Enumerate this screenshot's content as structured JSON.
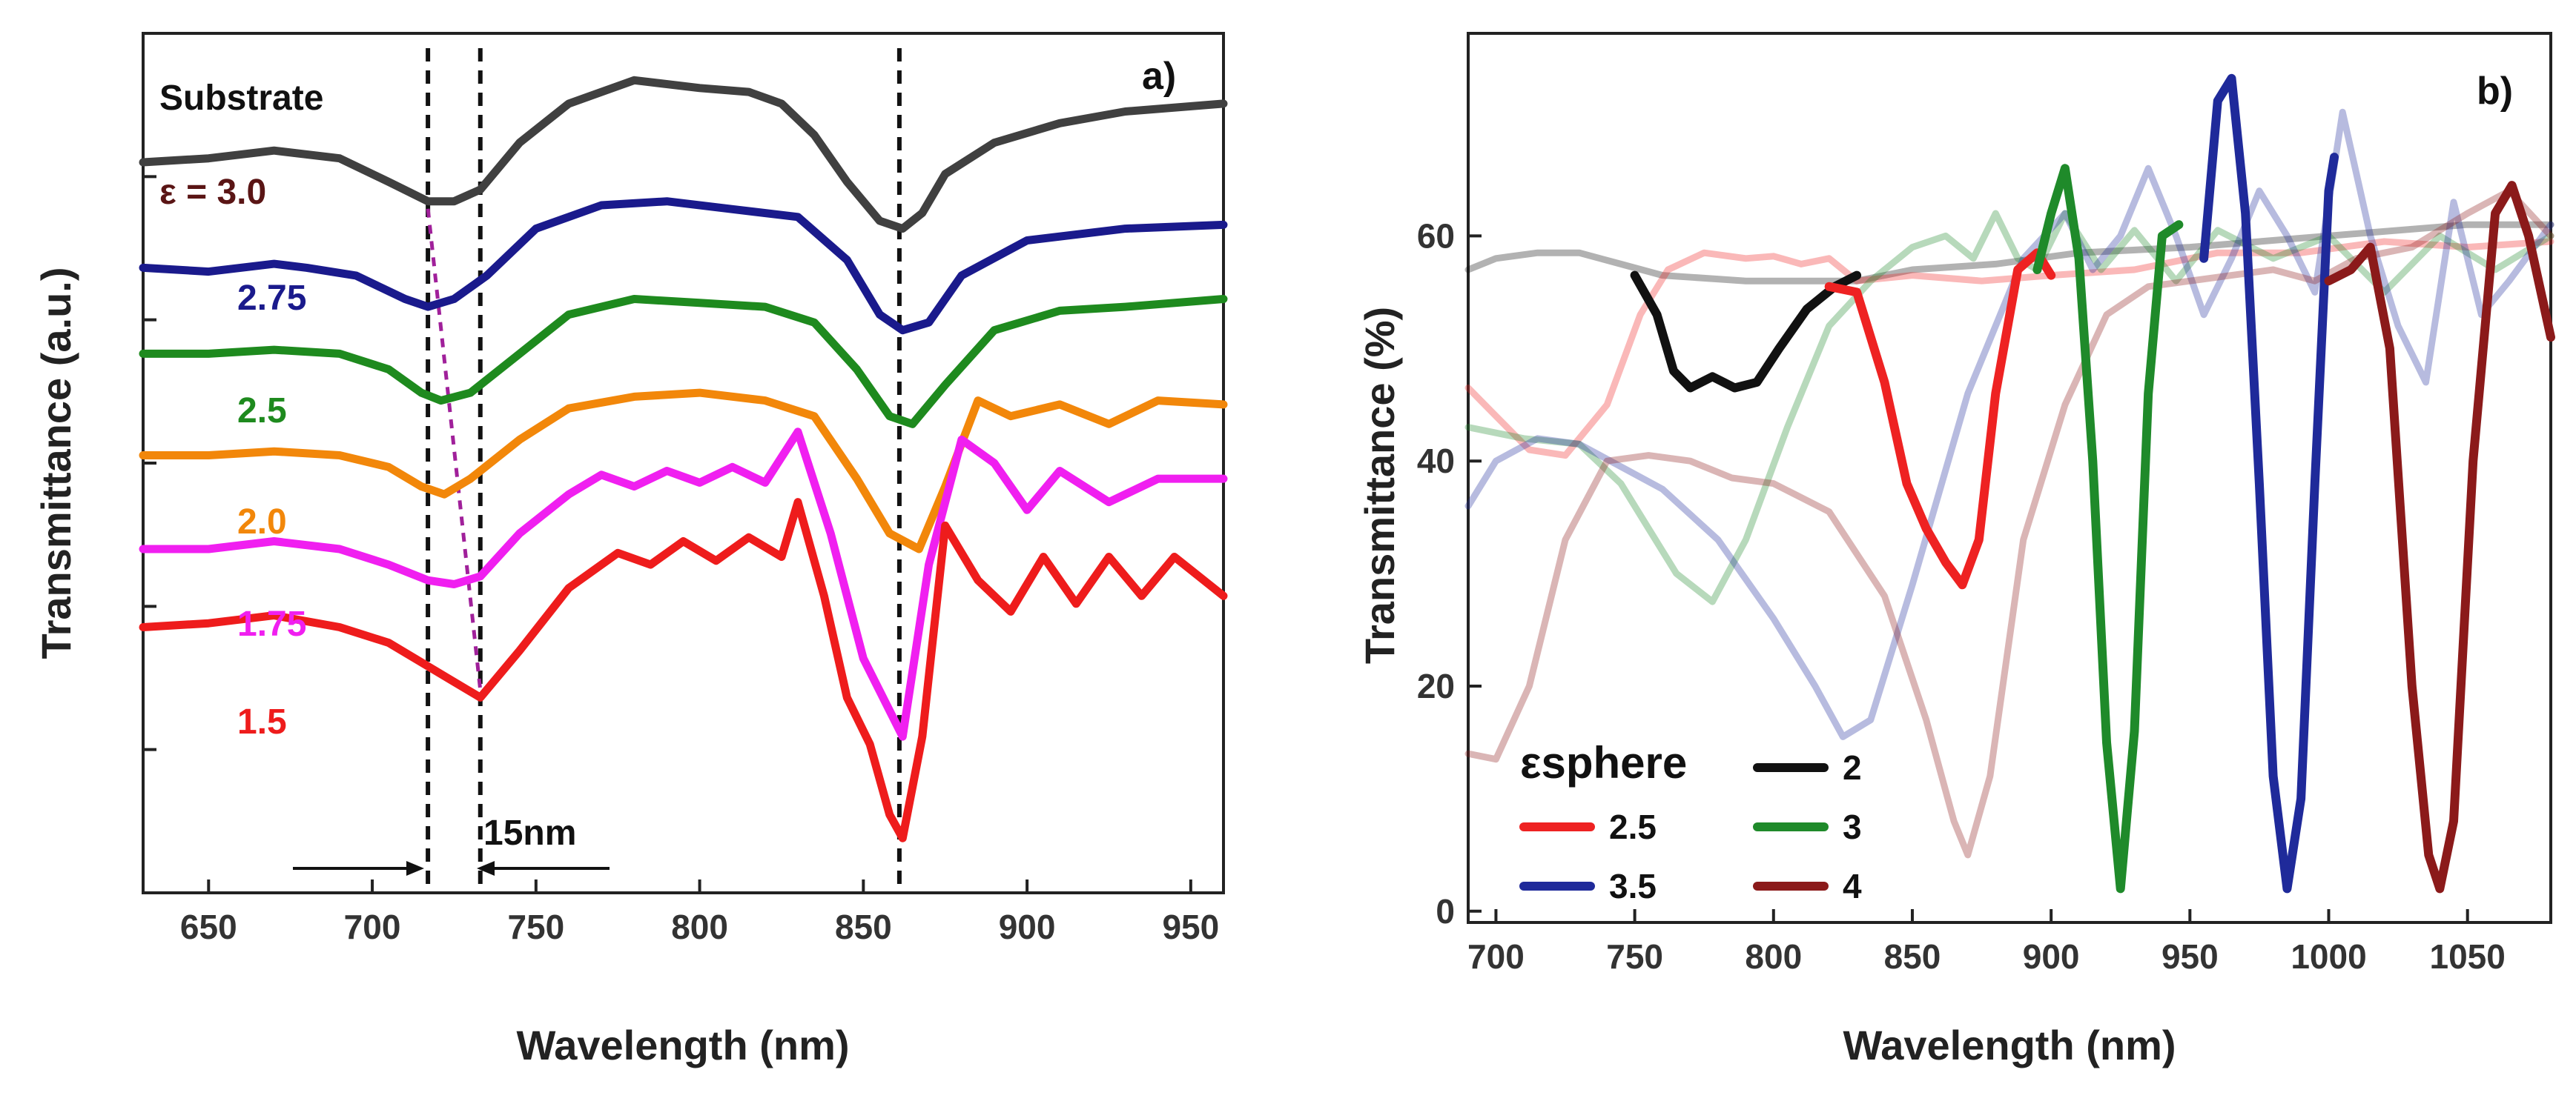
{
  "chart_data": [
    {
      "panel": "a)",
      "type": "line",
      "xlabel": "Wavelength (nm)",
      "ylabel": "Transmittance (a.u.)",
      "xlim": [
        630,
        960
      ],
      "ylim": [
        0,
        11
      ],
      "xticks": [
        650,
        700,
        750,
        800,
        850,
        900,
        950
      ],
      "yticks_labeled": false,
      "note": "Curves are vertically offset; y-values are arbitrary units.",
      "guide_lines_x": [
        717,
        733,
        861
      ],
      "shift_annotation": "15nm",
      "series": [
        {
          "name": "Substrate",
          "label": "Substrate",
          "color": "#404040",
          "x": [
            630,
            650,
            670,
            690,
            705,
            717,
            725,
            733,
            745,
            760,
            780,
            800,
            815,
            825,
            835,
            845,
            855,
            862,
            868,
            875,
            890,
            910,
            930,
            960
          ],
          "y": [
            9.35,
            9.4,
            9.5,
            9.4,
            9.1,
            8.85,
            8.85,
            9.0,
            9.6,
            10.1,
            10.4,
            10.3,
            10.25,
            10.1,
            9.7,
            9.1,
            8.6,
            8.5,
            8.7,
            9.2,
            9.6,
            9.85,
            10.0,
            10.1
          ]
        },
        {
          "name": "3.0",
          "label": "ε = 3.0",
          "color": "#5a1515"
        },
        {
          "name": "2.75",
          "label": "2.75",
          "color": "#1a1a8c",
          "x": [
            630,
            650,
            670,
            680,
            695,
            710,
            717,
            725,
            735,
            750,
            770,
            790,
            810,
            830,
            845,
            855,
            862,
            870,
            880,
            900,
            930,
            960
          ],
          "y": [
            8.0,
            7.95,
            8.05,
            8.0,
            7.9,
            7.6,
            7.5,
            7.6,
            7.9,
            8.5,
            8.8,
            8.85,
            8.75,
            8.65,
            8.1,
            7.4,
            7.2,
            7.3,
            7.9,
            8.35,
            8.5,
            8.55
          ]
        },
        {
          "name": "2.5",
          "label": "2.5",
          "color": "#1e8a1e",
          "x": [
            630,
            650,
            670,
            690,
            705,
            715,
            721,
            730,
            745,
            760,
            780,
            800,
            820,
            835,
            848,
            858,
            865,
            875,
            890,
            910,
            930,
            960
          ],
          "y": [
            6.9,
            6.9,
            6.95,
            6.9,
            6.7,
            6.4,
            6.3,
            6.4,
            6.9,
            7.4,
            7.6,
            7.55,
            7.5,
            7.3,
            6.7,
            6.1,
            6.0,
            6.5,
            7.2,
            7.45,
            7.5,
            7.6
          ]
        },
        {
          "name": "2.0",
          "label": "2.0",
          "color": "#f2870a",
          "x": [
            630,
            650,
            670,
            690,
            705,
            715,
            722,
            730,
            745,
            760,
            780,
            800,
            820,
            835,
            848,
            858,
            867,
            875,
            885,
            895,
            910,
            925,
            940,
            960
          ],
          "y": [
            5.6,
            5.6,
            5.65,
            5.6,
            5.45,
            5.2,
            5.1,
            5.3,
            5.8,
            6.2,
            6.35,
            6.4,
            6.3,
            6.1,
            5.3,
            4.6,
            4.4,
            5.2,
            6.3,
            6.1,
            6.25,
            6.0,
            6.3,
            6.25
          ]
        },
        {
          "name": "1.75",
          "label": "1.75",
          "color": "#f01ff0",
          "x": [
            630,
            650,
            670,
            690,
            705,
            717,
            725,
            733,
            745,
            760,
            770,
            780,
            790,
            800,
            810,
            820,
            830,
            840,
            850,
            862,
            870,
            880,
            890,
            900,
            910,
            925,
            940,
            960
          ],
          "y": [
            4.4,
            4.4,
            4.5,
            4.4,
            4.2,
            4.0,
            3.95,
            4.05,
            4.6,
            5.1,
            5.35,
            5.2,
            5.4,
            5.25,
            5.45,
            5.25,
            5.9,
            4.6,
            3.0,
            2.0,
            4.2,
            5.8,
            5.5,
            4.9,
            5.4,
            5.0,
            5.3,
            5.3
          ]
        },
        {
          "name": "1.5",
          "label": "1.5",
          "color": "#ee1c1c",
          "x": [
            630,
            650,
            670,
            690,
            705,
            717,
            725,
            733,
            745,
            760,
            775,
            785,
            795,
            805,
            815,
            825,
            830,
            838,
            845,
            852,
            858,
            862,
            868,
            875,
            885,
            895,
            905,
            915,
            925,
            935,
            945,
            960
          ],
          "y": [
            3.4,
            3.45,
            3.55,
            3.4,
            3.2,
            2.9,
            2.7,
            2.5,
            3.1,
            3.9,
            4.35,
            4.2,
            4.5,
            4.25,
            4.55,
            4.3,
            5.0,
            3.8,
            2.5,
            1.9,
            1.0,
            0.7,
            2.0,
            4.7,
            4.0,
            3.6,
            4.3,
            3.7,
            4.3,
            3.8,
            4.3,
            3.8
          ]
        }
      ]
    },
    {
      "panel": "b)",
      "type": "line",
      "xlabel": "Wavelength (nm)",
      "ylabel": "Transmittance (%)",
      "xlim": [
        690,
        1080
      ],
      "ylim": [
        -1,
        78
      ],
      "xticks": [
        700,
        750,
        800,
        850,
        900,
        950,
        1000,
        1050
      ],
      "yticks": [
        0,
        20,
        40,
        60
      ],
      "legend_title": "εsphere",
      "legend_position": "bottom-left",
      "series": [
        {
          "name": "2",
          "color": "#111111",
          "faded": {
            "x": [
              690,
              700,
              715,
              730,
              745,
              760,
              790,
              830,
              850,
              880,
              910,
              950,
              1000,
              1050,
              1080
            ],
            "y": [
              57,
              58,
              58.5,
              58.5,
              57.5,
              56.5,
              56,
              56,
              57,
              57.5,
              58.5,
              59,
              60,
              61,
              61
            ]
          },
          "bold": {
            "x": [
              750,
              758,
              764,
              770,
              778,
              786,
              794,
              802,
              812,
              822,
              830
            ],
            "y": [
              56.5,
              53,
              48,
              46.5,
              47.5,
              46.5,
              47,
              50,
              53.5,
              55.5,
              56.5
            ]
          }
        },
        {
          "name": "2.5",
          "color": "#ee2222",
          "faded": {
            "x": [
              690,
              700,
              712,
              725,
              740,
              752,
              762,
              775,
              790,
              800,
              810,
              820,
              830,
              850,
              875,
              900,
              930,
              960,
              990,
              1020,
              1050,
              1080
            ],
            "y": [
              46.5,
              44,
              41,
              40.5,
              45,
              53,
              57,
              58.5,
              58,
              58.2,
              57.5,
              58,
              56,
              56.5,
              56,
              56.5,
              57,
              58.5,
              58.5,
              59.5,
              59,
              59.5
            ]
          },
          "bold": {
            "x": [
              820,
              830,
              840,
              848,
              855,
              862,
              868,
              874,
              880,
              888,
              895,
              900
            ],
            "y": [
              55.5,
              55,
              47,
              38,
              34,
              31,
              29,
              33,
              46,
              57,
              58.5,
              56.5
            ]
          }
        },
        {
          "name": "3",
          "color": "#1f8a2a",
          "faded": {
            "x": [
              690,
              710,
              730,
              745,
              755,
              765,
              778,
              790,
              805,
              820,
              835,
              850,
              862,
              872,
              880,
              888,
              895,
              905,
              918,
              930,
              945,
              960,
              980,
              1000,
              1020,
              1040,
              1060,
              1080
            ],
            "y": [
              43,
              42,
              41.5,
              38,
              34,
              30,
              27.5,
              33,
              43,
              52,
              56,
              59,
              60,
              58,
              62,
              58,
              57,
              62,
              57,
              60.5,
              56,
              60.5,
              58,
              60,
              55,
              60,
              57,
              60
            ]
          },
          "bold": {
            "x": [
              895,
              900,
              905,
              910,
              915,
              920,
              925,
              930,
              935,
              940,
              946
            ],
            "y": [
              57,
              62,
              66,
              58,
              40,
              15,
              2,
              16,
              46,
              60,
              61
            ]
          }
        },
        {
          "name": "3.5",
          "color": "#1f2a9a",
          "faded": {
            "x": [
              690,
              700,
              715,
              730,
              745,
              760,
              780,
              800,
              815,
              825,
              835,
              850,
              870,
              890,
              905,
              915,
              925,
              935,
              945,
              955,
              965,
              975,
              985,
              995,
              1005,
              1015,
              1025,
              1035,
              1045,
              1055,
              1065,
              1080
            ],
            "y": [
              36,
              40,
              42,
              41.5,
              39.5,
              37.5,
              33,
              26,
              20,
              15.5,
              17,
              29,
              46,
              58,
              62,
              57,
              60,
              66,
              60,
              53,
              58,
              64,
              60,
              55,
              71,
              60,
              52,
              47,
              63,
              53,
              56,
              61
            ]
          },
          "bold": {
            "x": [
              955,
              960,
              965,
              970,
              975,
              980,
              985,
              990,
              995,
              1000,
              1002
            ],
            "y": [
              58,
              72,
              74,
              62,
              38,
              12,
              2,
              10,
              38,
              64,
              67
            ]
          }
        },
        {
          "name": "4",
          "color": "#8b1a1a",
          "faded": {
            "x": [
              690,
              700,
              712,
              725,
              740,
              755,
              770,
              785,
              800,
              820,
              840,
              855,
              865,
              870,
              878,
              890,
              905,
              920,
              935,
              950,
              965,
              980,
              995,
              1010,
              1030,
              1050,
              1065,
              1080
            ],
            "y": [
              14,
              13.5,
              20,
              33,
              40,
              40.5,
              40,
              38.5,
              38,
              35.5,
              28,
              17,
              8,
              5,
              12,
              33,
              45,
              53,
              55.5,
              56,
              56.5,
              57,
              56,
              58,
              59,
              62,
              64,
              60
            ]
          },
          "bold": {
            "x": [
              1000,
              1008,
              1015,
              1022,
              1030,
              1036,
              1040,
              1045,
              1052,
              1060,
              1066,
              1072,
              1080
            ],
            "y": [
              56,
              57,
              59,
              50,
              20,
              5,
              2,
              8,
              40,
              62,
              64.5,
              60,
              51
            ]
          }
        }
      ]
    }
  ]
}
